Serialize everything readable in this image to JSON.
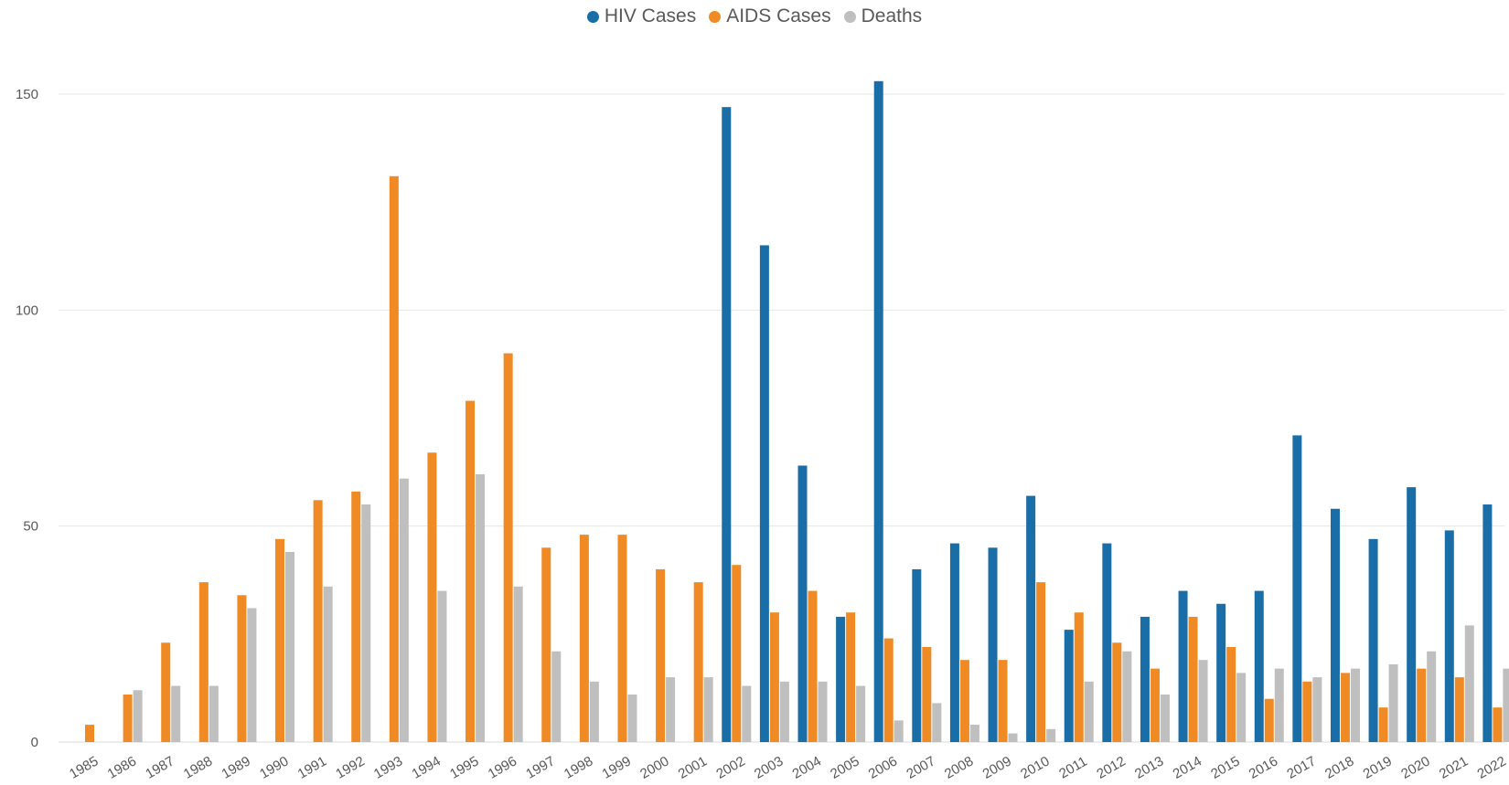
{
  "chart_data": {
    "type": "bar",
    "categories": [
      "1985",
      "1986",
      "1987",
      "1988",
      "1989",
      "1990",
      "1991",
      "1992",
      "1993",
      "1994",
      "1995",
      "1996",
      "1997",
      "1998",
      "1999",
      "2000",
      "2001",
      "2002",
      "2003",
      "2004",
      "2005",
      "2006",
      "2007",
      "2008",
      "2009",
      "2010",
      "2011",
      "2012",
      "2013",
      "2014",
      "2015",
      "2016",
      "2017",
      "2018",
      "2019",
      "2020",
      "2021",
      "2022"
    ],
    "series": [
      {
        "name": "HIV Cases",
        "color": "#1a6ea8",
        "values": [
          0,
          0,
          0,
          0,
          0,
          0,
          0,
          0,
          0,
          0,
          0,
          0,
          0,
          0,
          0,
          0,
          0,
          147,
          115,
          64,
          29,
          153,
          40,
          46,
          45,
          57,
          26,
          46,
          29,
          35,
          32,
          35,
          71,
          54,
          47,
          59,
          49,
          55
        ]
      },
      {
        "name": "AIDS Cases",
        "color": "#f08a24",
        "values": [
          4,
          11,
          23,
          37,
          34,
          47,
          56,
          58,
          131,
          67,
          79,
          90,
          45,
          48,
          48,
          40,
          37,
          41,
          30,
          35,
          30,
          24,
          22,
          19,
          19,
          37,
          30,
          23,
          17,
          29,
          22,
          10,
          14,
          16,
          8,
          17,
          15,
          8
        ]
      },
      {
        "name": "Deaths",
        "color": "#bfbfbf",
        "values": [
          0,
          12,
          13,
          13,
          31,
          44,
          36,
          55,
          61,
          35,
          62,
          36,
          21,
          14,
          11,
          15,
          15,
          13,
          14,
          14,
          13,
          5,
          9,
          4,
          2,
          3,
          14,
          21,
          11,
          19,
          16,
          17,
          15,
          17,
          18,
          21,
          27,
          17
        ]
      }
    ],
    "yticks": [
      0,
      50,
      100,
      150
    ],
    "ylim": [
      0,
      160
    ],
    "grid": true,
    "legend_position": "top-center"
  }
}
